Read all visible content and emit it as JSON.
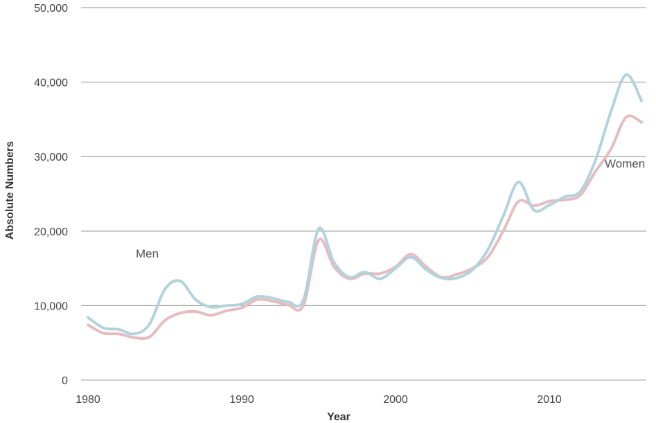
{
  "chart_data": {
    "type": "line",
    "title": "",
    "xlabel": "Year",
    "ylabel": "Absolute Numbers",
    "xlim": [
      1980,
      2016
    ],
    "ylim": [
      0,
      50000
    ],
    "x_ticks": [
      1980,
      1990,
      2000,
      2010
    ],
    "y_ticks": [
      0,
      10000,
      20000,
      30000,
      40000,
      50000
    ],
    "y_tick_labels": [
      "0",
      "10,000",
      "20,000",
      "30,000",
      "40,000",
      "50,000"
    ],
    "grid": "horizontal",
    "legend": "inline labels",
    "x": [
      1980,
      1981,
      1982,
      1983,
      1984,
      1985,
      1986,
      1987,
      1988,
      1989,
      1990,
      1991,
      1992,
      1993,
      1994,
      1995,
      1996,
      1997,
      1998,
      1999,
      2000,
      2001,
      2002,
      2003,
      2004,
      2005,
      2006,
      2007,
      2008,
      2009,
      2010,
      2011,
      2012,
      2013,
      2014,
      2015,
      2016
    ],
    "series": [
      {
        "name": "Men",
        "color": "#b3d3dc",
        "values": [
          8400,
          7000,
          6800,
          6200,
          7500,
          12200,
          13300,
          10800,
          9800,
          10000,
          10200,
          11200,
          11000,
          10500,
          10700,
          20300,
          15800,
          13800,
          14500,
          13600,
          15000,
          16500,
          14800,
          13700,
          13700,
          14800,
          17500,
          22000,
          26600,
          22800,
          23500,
          24600,
          25300,
          29500,
          36000,
          41000,
          37500
        ]
      },
      {
        "name": "Women",
        "color": "#e6bcbf",
        "values": [
          7400,
          6300,
          6200,
          5700,
          5800,
          8000,
          9000,
          9200,
          8700,
          9300,
          9700,
          10800,
          10600,
          10100,
          10000,
          18800,
          15200,
          13600,
          14300,
          14300,
          15200,
          16900,
          15200,
          13800,
          14200,
          15000,
          16500,
          20000,
          24000,
          23400,
          24000,
          24200,
          24800,
          28000,
          31000,
          35300,
          34600
        ]
      }
    ]
  }
}
